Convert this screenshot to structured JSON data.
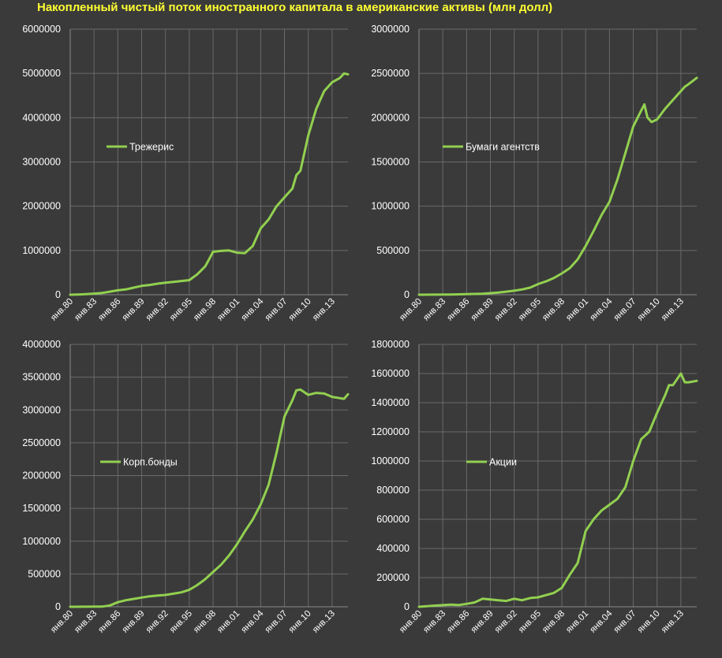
{
  "title": "Накопленный чистый поток иностранного капитала в американские активы (млн долл)",
  "colors": {
    "background": "#3a3a3a",
    "series": "#92d050",
    "grid": "#6a6a6a",
    "text": "#ffffff",
    "title": "#ffff33"
  },
  "chart_data": [
    {
      "type": "line",
      "grid": "vertical-and-horizontal",
      "legend_position": "left-middle",
      "ylim": [
        0,
        6000000
      ],
      "yticks": [
        "0",
        "1000000",
        "2000000",
        "3000000",
        "4000000",
        "5000000",
        "6000000"
      ],
      "xticks": [
        "янв.80",
        "янв.83",
        "янв.86",
        "янв.89",
        "янв.92",
        "янв.95",
        "янв.98",
        "янв.01",
        "янв.04",
        "янв.07",
        "янв.10",
        "янв.13"
      ],
      "series": [
        {
          "name": "Трежерис",
          "x": [
            1980,
            1981,
            1982,
            1983,
            1984,
            1985,
            1986,
            1987,
            1988,
            1989,
            1990,
            1991,
            1992,
            1993,
            1994,
            1995,
            1996,
            1997,
            1997.5,
            1998,
            1999,
            2000,
            2001,
            2002,
            2003,
            2004,
            2005,
            2006,
            2007,
            2008,
            2008.5,
            2009,
            2009.5,
            2010,
            2011,
            2012,
            2013,
            2014,
            2014.5,
            2015
          ],
          "values": [
            0,
            5000,
            15000,
            25000,
            40000,
            70000,
            100000,
            120000,
            160000,
            200000,
            220000,
            250000,
            270000,
            290000,
            310000,
            330000,
            460000,
            640000,
            800000,
            970000,
            990000,
            1000000,
            950000,
            940000,
            1100000,
            1500000,
            1700000,
            2000000,
            2200000,
            2400000,
            2700000,
            2800000,
            3200000,
            3600000,
            4200000,
            4600000,
            4800000,
            4900000,
            5000000,
            4980000
          ]
        }
      ]
    },
    {
      "type": "line",
      "grid": "vertical-and-horizontal",
      "legend_position": "left-middle",
      "ylim": [
        0,
        3000000
      ],
      "yticks": [
        "0",
        "500000",
        "1000000",
        "1500000",
        "2000000",
        "2500000",
        "3000000"
      ],
      "xticks": [
        "янв.80",
        "янв.83",
        "янв.86",
        "янв.89",
        "янв.92",
        "янв.95",
        "янв.98",
        "янв.01",
        "янв.04",
        "янв.07",
        "янв.10",
        "янв.13"
      ],
      "series": [
        {
          "name": "Бумаги агентств",
          "x": [
            1980,
            1982,
            1984,
            1986,
            1988,
            1990,
            1991,
            1992,
            1993,
            1994,
            1995,
            1996,
            1997,
            1998,
            1999,
            2000,
            2001,
            2002,
            2003,
            2004,
            2005,
            2006,
            2007,
            2008,
            2008.4,
            2008.8,
            2009.3,
            2010,
            2011,
            2012,
            2013,
            2013.5,
            2014,
            2015
          ],
          "values": [
            0,
            1000,
            3000,
            6000,
            12000,
            25000,
            35000,
            45000,
            60000,
            80000,
            120000,
            150000,
            190000,
            240000,
            300000,
            400000,
            550000,
            720000,
            900000,
            1050000,
            1300000,
            1600000,
            1900000,
            2080000,
            2150000,
            2000000,
            1950000,
            1980000,
            2100000,
            2200000,
            2300000,
            2350000,
            2380000,
            2450000
          ]
        }
      ]
    },
    {
      "type": "line",
      "grid": "vertical-and-horizontal",
      "legend_position": "left-middle",
      "ylim": [
        0,
        4000000
      ],
      "yticks": [
        "0",
        "500000",
        "1000000",
        "1500000",
        "2000000",
        "2500000",
        "3000000",
        "3500000",
        "4000000"
      ],
      "xticks": [
        "янв.80",
        "янв.83",
        "янв.86",
        "янв.89",
        "янв.92",
        "янв.95",
        "янв.98",
        "янв.01",
        "янв.04",
        "янв.07",
        "янв.10",
        "янв.13"
      ],
      "series": [
        {
          "name": "Корп.бонды",
          "x": [
            1980,
            1982,
            1984,
            1985,
            1986,
            1987,
            1988,
            1989,
            1990,
            1991,
            1992,
            1993,
            1994,
            1995,
            1996,
            1997,
            1998,
            1999,
            2000,
            2001,
            2002,
            2003,
            2004,
            2005,
            2006,
            2007,
            2008,
            2008.5,
            2009,
            2010,
            2011,
            2012,
            2013,
            2014,
            2014.5,
            2015
          ],
          "values": [
            0,
            1000,
            3000,
            20000,
            70000,
            100000,
            120000,
            140000,
            160000,
            170000,
            180000,
            200000,
            220000,
            260000,
            330000,
            420000,
            530000,
            640000,
            780000,
            950000,
            1150000,
            1330000,
            1560000,
            1860000,
            2350000,
            2900000,
            3150000,
            3300000,
            3310000,
            3230000,
            3260000,
            3250000,
            3200000,
            3180000,
            3170000,
            3240000
          ]
        }
      ]
    },
    {
      "type": "line",
      "grid": "vertical-and-horizontal",
      "legend_position": "left-middle",
      "ylim": [
        0,
        1800000
      ],
      "yticks": [
        "0",
        "200000",
        "400000",
        "600000",
        "800000",
        "1000000",
        "1200000",
        "1400000",
        "1600000",
        "1800000"
      ],
      "xticks": [
        "янв.80",
        "янв.83",
        "янв.86",
        "янв.89",
        "янв.92",
        "янв.95",
        "янв.98",
        "янв.01",
        "янв.04",
        "янв.07",
        "янв.10",
        "янв.13"
      ],
      "series": [
        {
          "name": "Акции",
          "x": [
            1980,
            1982,
            1984,
            1985,
            1986,
            1987,
            1988,
            1989,
            1990,
            1991,
            1992,
            1993,
            1994,
            1995,
            1996,
            1997,
            1998,
            1999,
            2000,
            2001,
            2002,
            2003,
            2004,
            2005,
            2006,
            2007,
            2008,
            2009,
            2010,
            2011,
            2011.5,
            2012,
            2012.5,
            2013,
            2013.5,
            2014,
            2015
          ],
          "values": [
            0,
            8000,
            15000,
            12000,
            20000,
            30000,
            55000,
            50000,
            45000,
            40000,
            55000,
            45000,
            60000,
            65000,
            80000,
            95000,
            130000,
            220000,
            300000,
            520000,
            600000,
            660000,
            700000,
            740000,
            820000,
            1000000,
            1150000,
            1200000,
            1330000,
            1450000,
            1520000,
            1520000,
            1560000,
            1600000,
            1540000,
            1540000,
            1550000
          ]
        }
      ]
    }
  ]
}
